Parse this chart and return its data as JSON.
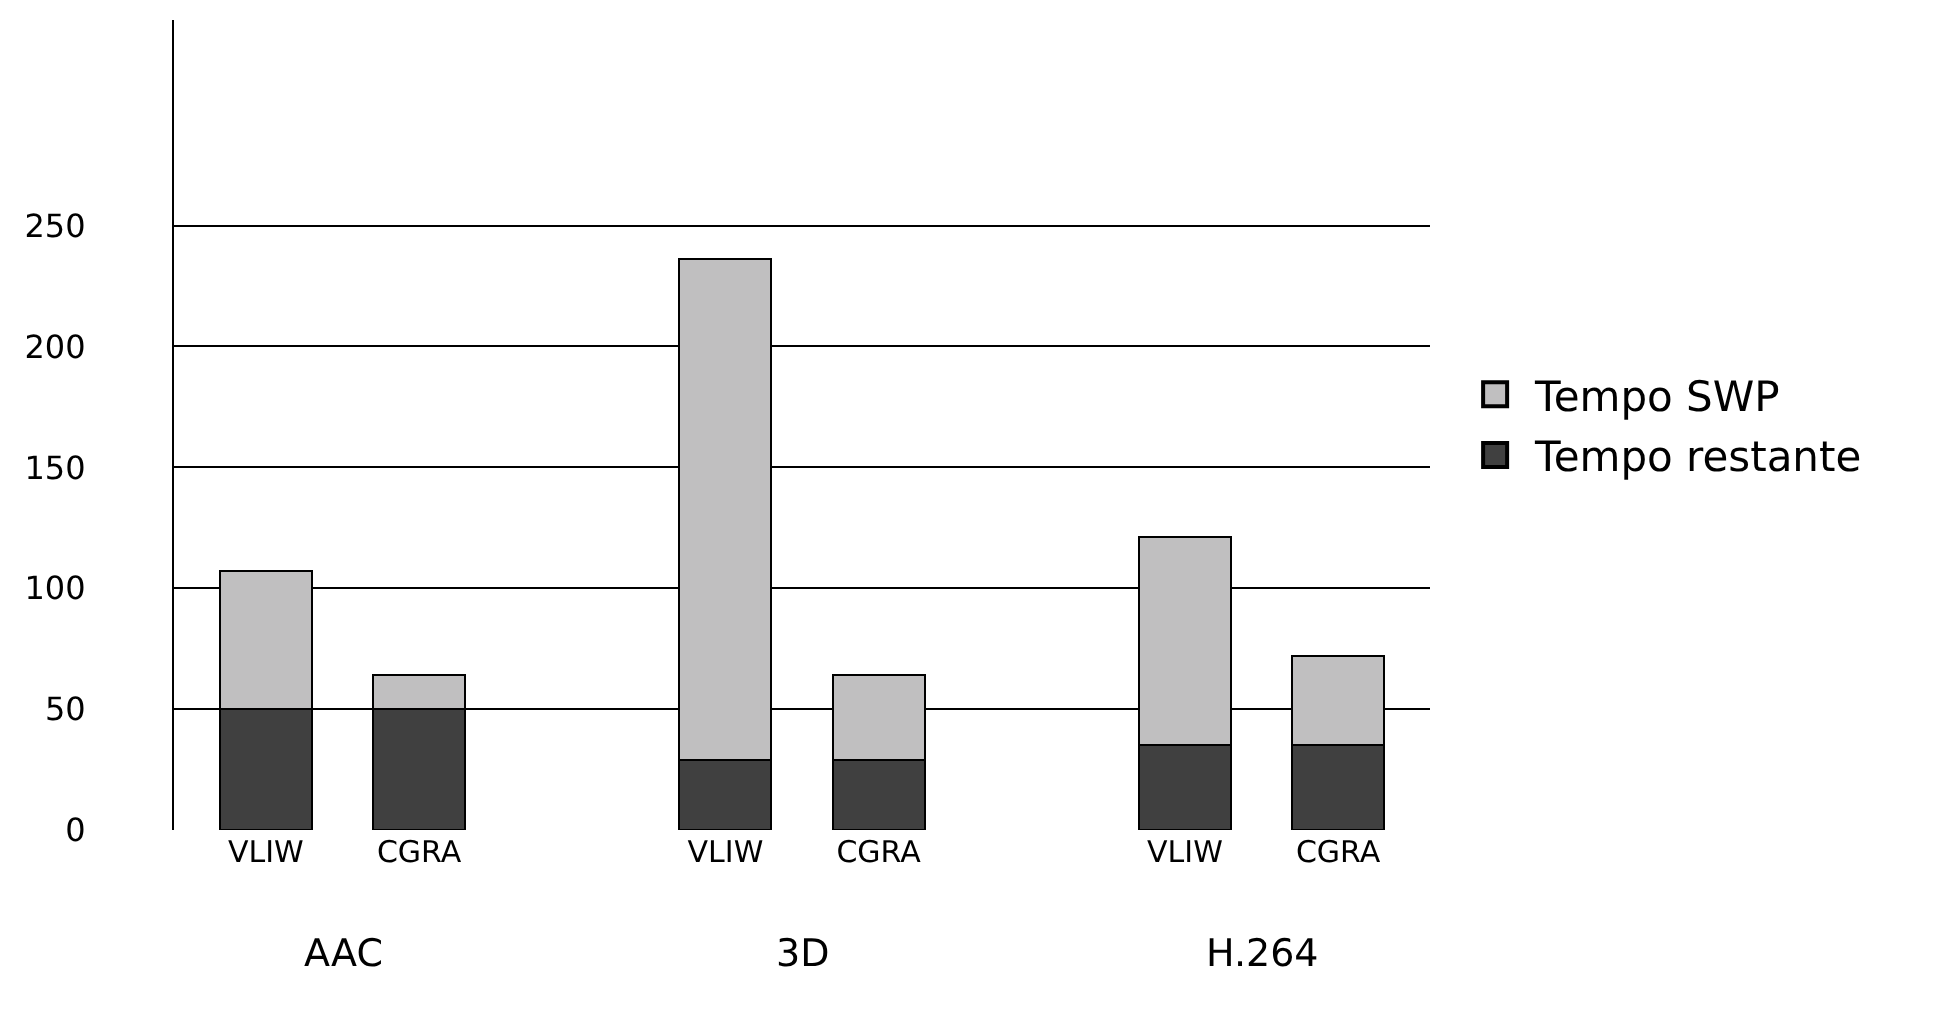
{
  "chart_data": {
    "type": "bar",
    "stacked": true,
    "categories": [
      "VLIW",
      "CGRA",
      null,
      "VLIW",
      "CGRA",
      null,
      "VLIW",
      "CGRA"
    ],
    "series": [
      {
        "name": "Tempo restante",
        "color": "#404040",
        "values": [
          50,
          50,
          null,
          29,
          29,
          null,
          35,
          35
        ]
      },
      {
        "name": "Tempo SWP",
        "color": "#c0bfc0",
        "values": [
          57,
          14,
          null,
          207,
          35,
          null,
          86,
          37
        ]
      }
    ],
    "annotations": [
      "AAC",
      "3D",
      "H.264"
    ],
    "ylim": [
      0,
      335
    ],
    "yticks": [
      0,
      50,
      100,
      150,
      200,
      250
    ],
    "grid": "y",
    "legend": "right"
  }
}
